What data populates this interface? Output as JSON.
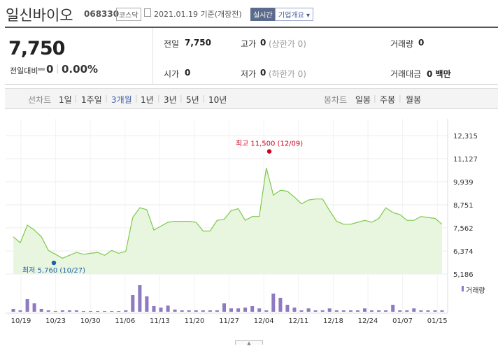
{
  "header": {
    "title": "일신바이오",
    "code": "068330",
    "market": "코스닥",
    "date": "2021.01.19 기준(개장전)",
    "realtime_label": "실시간",
    "corp_info_label": "기업개요 ▾"
  },
  "quote": {
    "price": "7,750",
    "change_label": "전일대비",
    "change_value": "0",
    "change_sep": "|",
    "change_pct": "0.00%",
    "prev_close_label": "전일",
    "prev_close": "7,750",
    "high_label": "고가",
    "high": "0",
    "high_note": "(상한가 0)",
    "volume_label": "거래량",
    "volume": "0",
    "open_label": "시가",
    "open": "0",
    "low_label": "저가",
    "low": "0",
    "low_note": "(하한가 0)",
    "amount_label": "거래대금",
    "amount": "0 백만"
  },
  "tabs": {
    "line_label": "선차트",
    "periods": [
      "1일",
      "1주일",
      "3개월",
      "1년",
      "3년",
      "5년",
      "10년"
    ],
    "active_period": "3개월",
    "candle_label": "봉차트",
    "candles": [
      "일봉",
      "주봉",
      "월봉"
    ]
  },
  "colors": {
    "line": "#7cc94a",
    "area": "#e9f6df",
    "high_marker": "#d0021b",
    "low_marker": "#1f5fa8",
    "volume": "#8e79c2",
    "active_tab": "#4462a8"
  },
  "chart_data": {
    "type": "area",
    "y_ticks": [
      "12,315",
      "11,127",
      "9,939",
      "8,751",
      "7,562",
      "6,374",
      "5,186"
    ],
    "ylim": [
      5186,
      12315
    ],
    "x_ticks": [
      "10/19",
      "10/23",
      "10/30",
      "11/06",
      "11/13",
      "11/20",
      "11/27",
      "12/04",
      "12/11",
      "12/18",
      "12/24",
      "01/07",
      "01/15"
    ],
    "high_annotation": "최고 11,500 (12/09)",
    "low_annotation": "최저 5,760 (10/27)",
    "volume_legend": "거래량",
    "series": [
      {
        "values": [
          7100,
          6800,
          7700,
          7450,
          7100,
          6400,
          6200,
          6000,
          6150,
          6300,
          6200,
          6250,
          6300,
          6150,
          6400,
          6250,
          6350,
          8100,
          8600,
          8500,
          7450,
          7650,
          7850,
          7900,
          7900,
          7900,
          7850,
          7400,
          7400,
          7950,
          8000,
          8450,
          8550,
          7950,
          8150,
          8150,
          10650,
          9250,
          9500,
          9450,
          9150,
          8800,
          9000,
          9050,
          9050,
          8450,
          7900,
          7750,
          7750,
          7850,
          7950,
          7850,
          8050,
          8600,
          8350,
          8250,
          7950,
          7950,
          8150,
          8100,
          8050,
          7750
        ]
      }
    ],
    "volume": [
      0.1,
      0.05,
      0.45,
      0.3,
      0.1,
      0.05,
      0.02,
      0.05,
      0.05,
      0.05,
      0.02,
      0.02,
      0.02,
      0.02,
      0.02,
      0.02,
      0.05,
      0.6,
      0.95,
      0.55,
      0.2,
      0.15,
      0.22,
      0.08,
      0.05,
      0.05,
      0.05,
      0.05,
      0.05,
      0.05,
      0.3,
      0.12,
      0.12,
      0.15,
      0.2,
      0.12,
      0.05,
      0.65,
      0.5,
      0.25,
      0.15,
      0.05,
      0.12,
      0.05,
      0.05,
      0.12,
      0.05,
      0.05,
      0.05,
      0.05,
      0.12,
      0.05,
      0.05,
      0.05,
      0.25,
      0.05,
      0.05,
      0.12,
      0.05,
      0.05,
      0.05,
      0.05
    ]
  }
}
